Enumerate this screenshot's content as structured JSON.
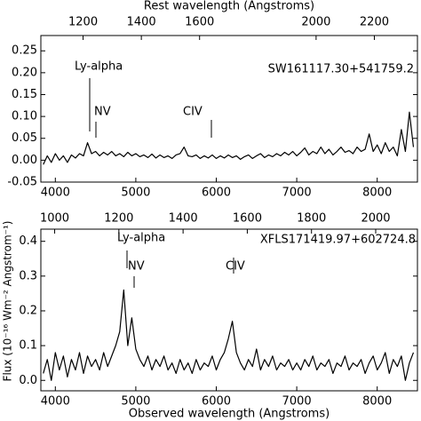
{
  "chart_data": [
    {
      "type": "line",
      "x2label": "Rest wavelength (Angstroms)",
      "annotations": [
        "Ly-alpha",
        "NV",
        "CIV",
        "SW161117.30+541759.2"
      ],
      "color": "#000000",
      "xlim": [
        3820,
        8500
      ],
      "xticks": [
        4000,
        5000,
        6000,
        7000,
        8000
      ],
      "x2lim": [
        1055,
        2348
      ],
      "x2ticks": [
        1200,
        1400,
        1600,
        2000,
        2200
      ],
      "ylim": [
        -0.05,
        0.285
      ],
      "yticks": [
        {
          "value": -0.05,
          "label": "-0.05"
        },
        {
          "value": 0,
          "label": "0.00"
        },
        {
          "value": 0.05,
          "label": "0.05"
        },
        {
          "value": 0.1,
          "label": "0.10"
        },
        {
          "value": 0.15,
          "label": "0.15"
        },
        {
          "value": 0.2,
          "label": "0.20"
        },
        {
          "value": 0.25,
          "label": "0.25"
        }
      ],
      "x": [
        3850,
        3900,
        3950,
        4000,
        4050,
        4100,
        4150,
        4200,
        4250,
        4300,
        4350,
        4400,
        4450,
        4500,
        4550,
        4600,
        4650,
        4700,
        4750,
        4800,
        4850,
        4900,
        4950,
        5000,
        5050,
        5100,
        5150,
        5200,
        5250,
        5300,
        5350,
        5400,
        5450,
        5500,
        5550,
        5600,
        5650,
        5700,
        5750,
        5800,
        5850,
        5900,
        5950,
        6000,
        6050,
        6100,
        6150,
        6200,
        6250,
        6300,
        6350,
        6400,
        6450,
        6500,
        6550,
        6600,
        6650,
        6700,
        6750,
        6800,
        6850,
        6900,
        6950,
        7000,
        7050,
        7100,
        7150,
        7200,
        7250,
        7300,
        7350,
        7400,
        7450,
        7500,
        7550,
        7600,
        7650,
        7700,
        7750,
        7800,
        7850,
        7900,
        7950,
        8000,
        8050,
        8100,
        8150,
        8200,
        8250,
        8300,
        8350,
        8400,
        8450
      ],
      "values": [
        -0.01,
        0.01,
        -0.005,
        0.015,
        0.0,
        0.01,
        -0.005,
        0.012,
        0.005,
        0.015,
        0.01,
        0.04,
        0.015,
        0.02,
        0.01,
        0.018,
        0.012,
        0.02,
        0.01,
        0.015,
        0.008,
        0.018,
        0.01,
        0.015,
        0.008,
        0.012,
        0.006,
        0.014,
        0.005,
        0.012,
        0.006,
        0.01,
        0.004,
        0.012,
        0.015,
        0.03,
        0.01,
        0.008,
        0.012,
        0.004,
        0.01,
        0.005,
        0.012,
        0.004,
        0.01,
        0.005,
        0.012,
        0.006,
        0.01,
        0.002,
        0.008,
        0.012,
        0.004,
        0.01,
        0.015,
        0.006,
        0.012,
        0.008,
        0.015,
        0.01,
        0.018,
        0.012,
        0.02,
        0.01,
        0.018,
        0.028,
        0.012,
        0.02,
        0.015,
        0.03,
        0.015,
        0.025,
        0.012,
        0.02,
        0.03,
        0.018,
        0.022,
        0.015,
        0.03,
        0.02,
        0.025,
        0.06,
        0.02,
        0.035,
        0.015,
        0.04,
        0.02,
        0.03,
        0.01,
        0.07,
        0.02,
        0.11,
        0.03
      ]
    },
    {
      "type": "line",
      "xlabel": "Observed wavelength (Angstroms)",
      "ylabel": "Flux (10⁻¹⁶ Wm⁻² Angstrom⁻¹)",
      "annotations": [
        "Ly-alpha",
        "NV",
        "CIV",
        "XFLS171419.97+602724.8"
      ],
      "color": "#000000",
      "xlim": [
        3820,
        8500
      ],
      "xticks": [
        4000,
        5000,
        6000,
        7000,
        8000
      ],
      "x2lim": [
        957,
        2130
      ],
      "x2ticks": [
        1000,
        1200,
        1400,
        1600,
        1800,
        2000
      ],
      "ylim": [
        -0.03,
        0.435
      ],
      "yticks": [
        {
          "value": 0,
          "label": "0.0"
        },
        {
          "value": 0.1,
          "label": "0.1"
        },
        {
          "value": 0.2,
          "label": "0.2"
        },
        {
          "value": 0.3,
          "label": "0.3"
        },
        {
          "value": 0.4,
          "label": "0.4"
        }
      ],
      "x": [
        3850,
        3900,
        3950,
        4000,
        4050,
        4100,
        4150,
        4200,
        4250,
        4300,
        4350,
        4400,
        4450,
        4500,
        4550,
        4600,
        4650,
        4700,
        4750,
        4800,
        4850,
        4900,
        4950,
        5000,
        5050,
        5100,
        5150,
        5200,
        5250,
        5300,
        5350,
        5400,
        5450,
        5500,
        5550,
        5600,
        5650,
        5700,
        5750,
        5800,
        5850,
        5900,
        5950,
        6000,
        6050,
        6100,
        6150,
        6200,
        6250,
        6300,
        6350,
        6400,
        6450,
        6500,
        6550,
        6600,
        6650,
        6700,
        6750,
        6800,
        6850,
        6900,
        6950,
        7000,
        7050,
        7100,
        7150,
        7200,
        7250,
        7300,
        7350,
        7400,
        7450,
        7500,
        7550,
        7600,
        7650,
        7700,
        7750,
        7800,
        7850,
        7900,
        7950,
        8000,
        8050,
        8100,
        8150,
        8200,
        8250,
        8300,
        8350,
        8400,
        8450
      ],
      "values": [
        0.02,
        0.06,
        0.0,
        0.08,
        0.03,
        0.07,
        0.01,
        0.06,
        0.03,
        0.08,
        0.02,
        0.07,
        0.04,
        0.06,
        0.03,
        0.08,
        0.04,
        0.07,
        0.1,
        0.14,
        0.26,
        0.1,
        0.18,
        0.09,
        0.06,
        0.04,
        0.07,
        0.03,
        0.06,
        0.04,
        0.07,
        0.03,
        0.05,
        0.02,
        0.06,
        0.03,
        0.05,
        0.02,
        0.06,
        0.03,
        0.05,
        0.04,
        0.07,
        0.03,
        0.06,
        0.08,
        0.12,
        0.17,
        0.08,
        0.05,
        0.03,
        0.06,
        0.04,
        0.09,
        0.03,
        0.06,
        0.04,
        0.07,
        0.03,
        0.05,
        0.04,
        0.06,
        0.03,
        0.05,
        0.03,
        0.06,
        0.04,
        0.07,
        0.03,
        0.05,
        0.04,
        0.06,
        0.02,
        0.05,
        0.04,
        0.07,
        0.03,
        0.05,
        0.04,
        0.06,
        0.02,
        0.05,
        0.07,
        0.03,
        0.05,
        0.08,
        0.02,
        0.06,
        0.04,
        0.07,
        0.0,
        0.05,
        0.08
      ]
    }
  ]
}
